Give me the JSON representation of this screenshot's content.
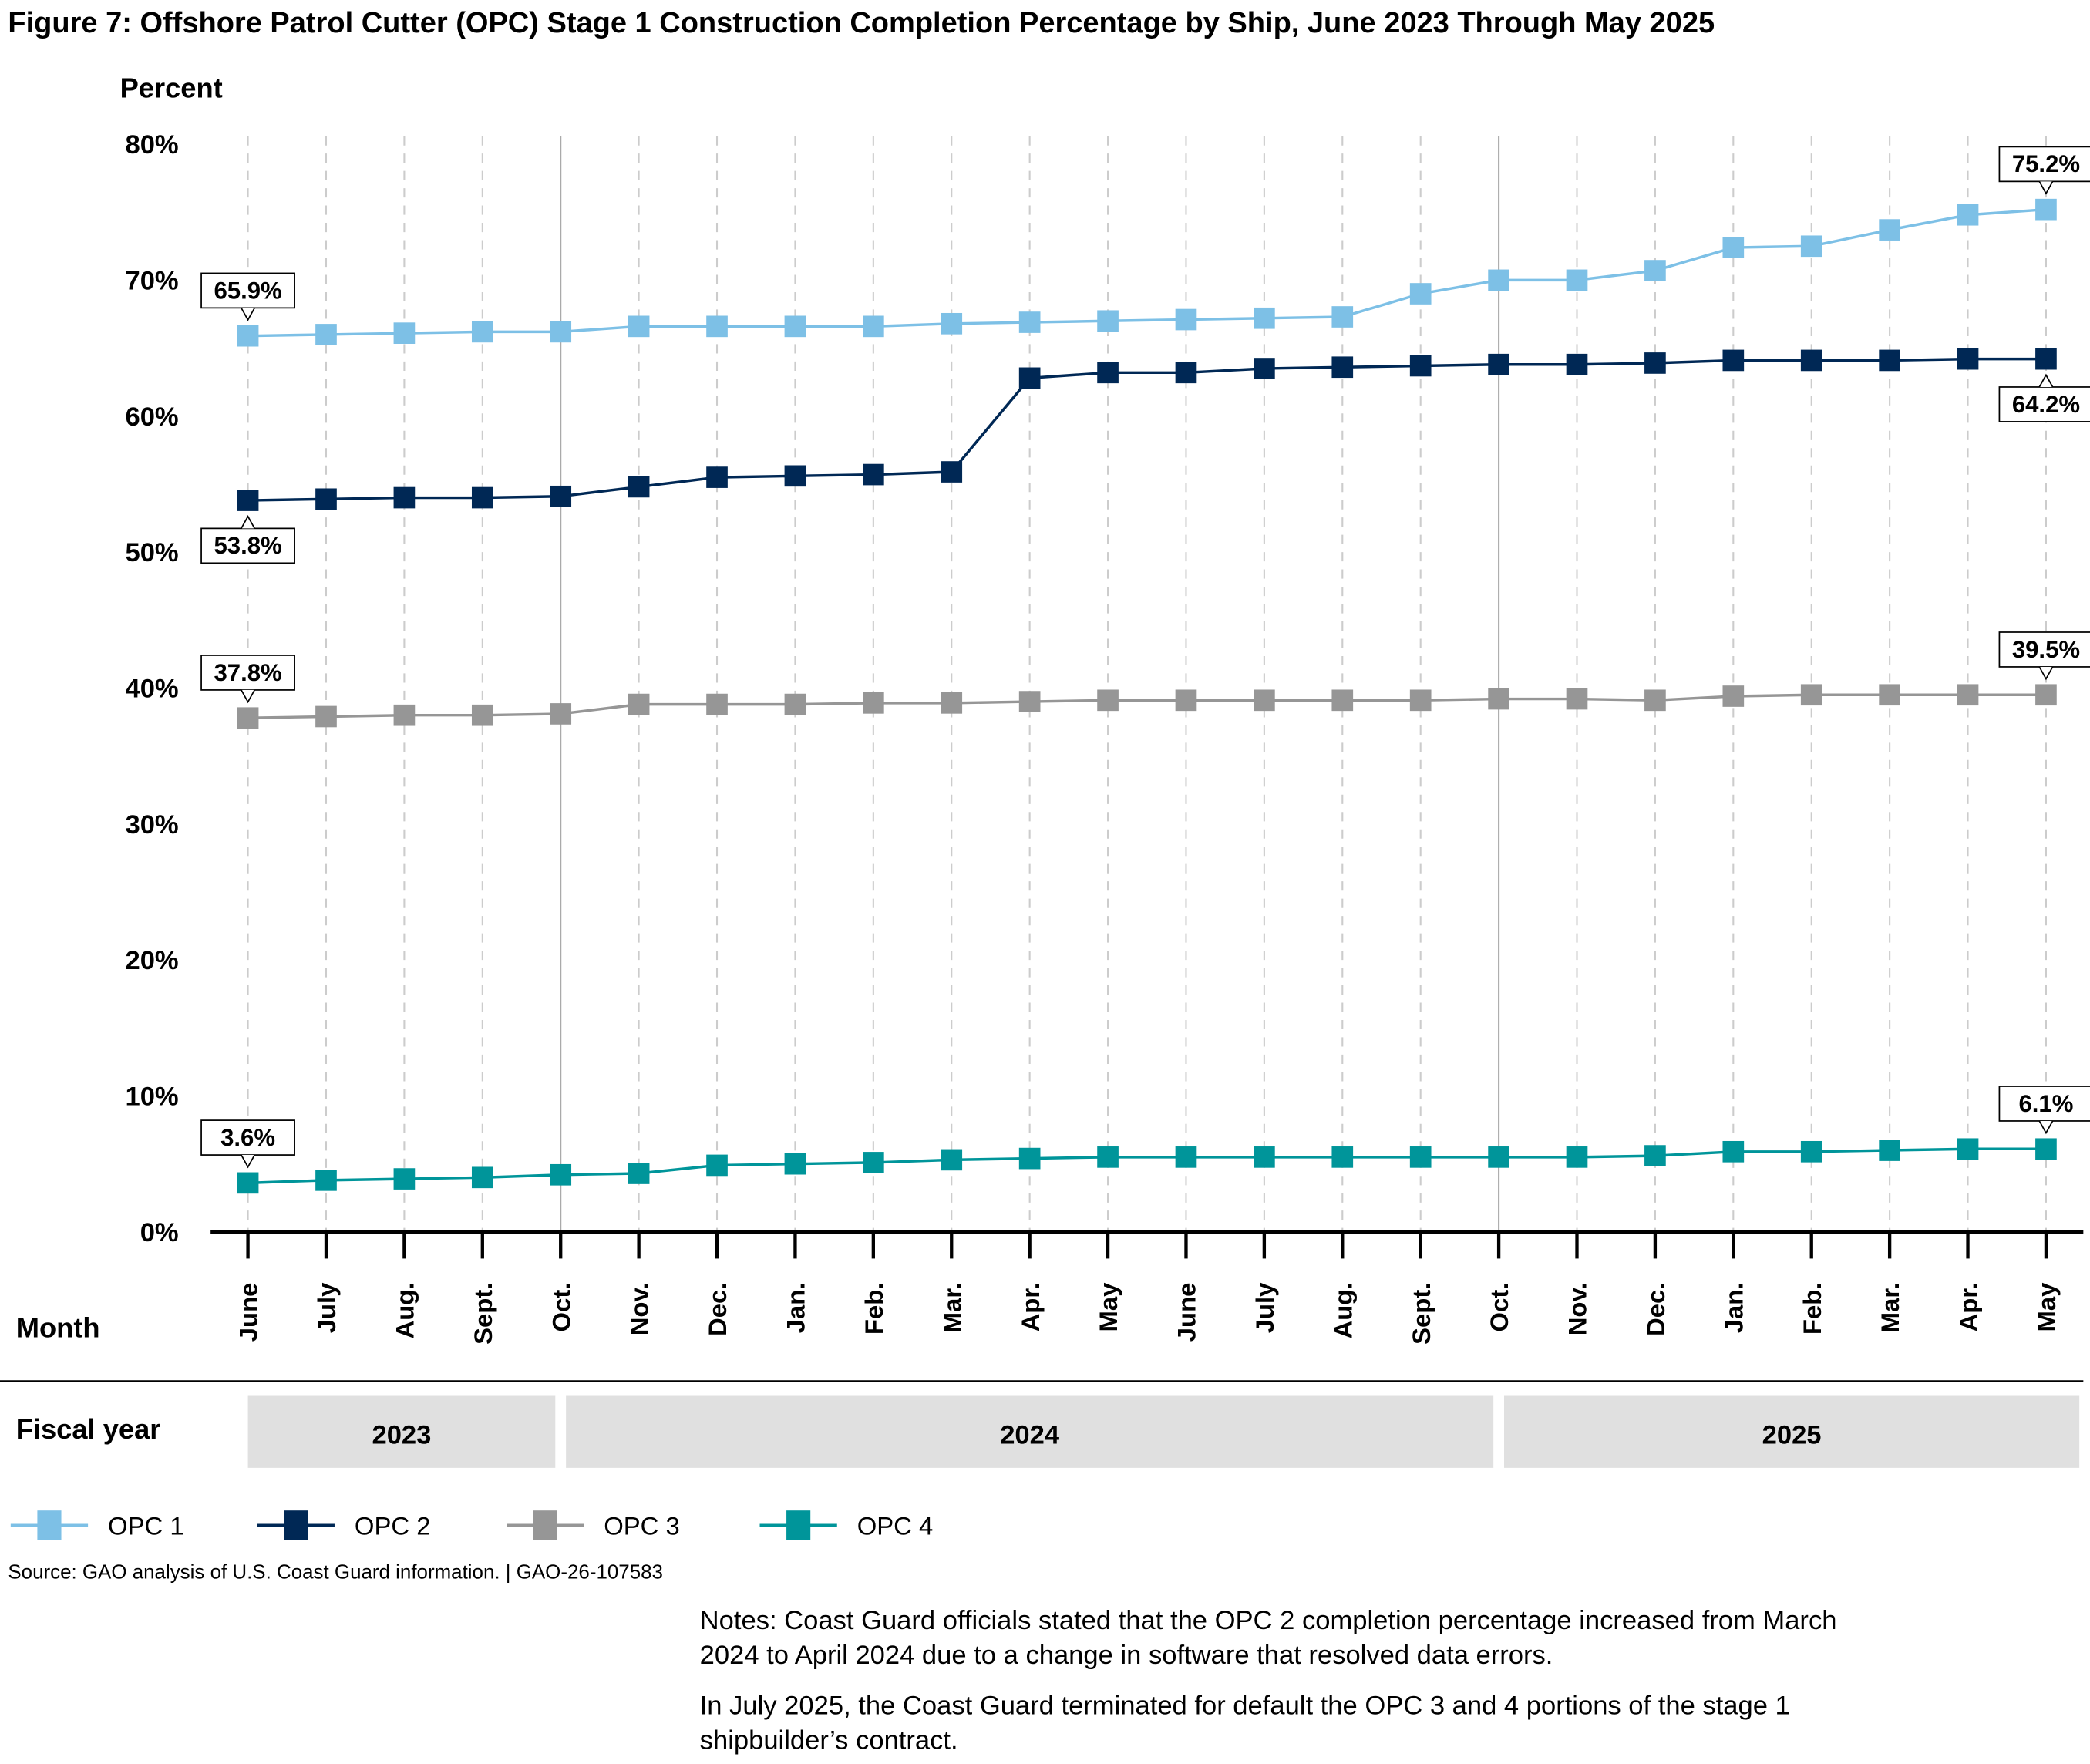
{
  "chart_data": {
    "type": "line",
    "title": "Figure 7: Offshore Patrol Cutter (OPC) Stage 1 Construction Completion Percentage by Ship, June 2023 Through May 2025",
    "ylabel": "Percent",
    "xlabel": "Month",
    "ylim": [
      0,
      80
    ],
    "yticks": [
      "0%",
      "10%",
      "20%",
      "30%",
      "40%",
      "50%",
      "60%",
      "70%",
      "80%"
    ],
    "categories": [
      "June",
      "July",
      "Aug.",
      "Sept.",
      "Oct.",
      "Nov.",
      "Dec.",
      "Jan.",
      "Feb.",
      "Mar.",
      "Apr.",
      "May",
      "June",
      "July",
      "Aug.",
      "Sept.",
      "Oct.",
      "Nov.",
      "Dec.",
      "Jan.",
      "Feb.",
      "Mar.",
      "Apr.",
      "May"
    ],
    "fiscal_year_label": "Fiscal year",
    "fiscal_years": [
      {
        "label": "2023",
        "start": 0,
        "end": 4
      },
      {
        "label": "2024",
        "start": 4,
        "end": 16
      },
      {
        "label": "2025",
        "start": 16,
        "end": 23
      }
    ],
    "fiscal_year_boundaries": [
      4,
      16
    ],
    "series": [
      {
        "name": "OPC 1",
        "color": "#7dc0e6",
        "values": [
          65.9,
          66.0,
          66.1,
          66.2,
          66.2,
          66.6,
          66.6,
          66.6,
          66.6,
          66.8,
          66.9,
          67.0,
          67.1,
          67.2,
          67.3,
          69.0,
          70.0,
          70.0,
          70.7,
          72.4,
          72.5,
          73.7,
          74.8,
          75.2
        ],
        "start_label": "65.9%",
        "start_side": "above",
        "end_label": "75.2%",
        "end_side": "above"
      },
      {
        "name": "OPC 2",
        "color": "#002855",
        "values": [
          53.8,
          53.9,
          54.0,
          54.0,
          54.1,
          54.8,
          55.5,
          55.6,
          55.7,
          55.9,
          62.8,
          63.2,
          63.2,
          63.5,
          63.6,
          63.7,
          63.8,
          63.8,
          63.9,
          64.1,
          64.1,
          64.1,
          64.2,
          64.2
        ],
        "start_label": "53.8%",
        "start_side": "below",
        "end_label": "64.2%",
        "end_side": "below"
      },
      {
        "name": "OPC 3",
        "color": "#969696",
        "values": [
          37.8,
          37.9,
          38.0,
          38.0,
          38.1,
          38.8,
          38.8,
          38.8,
          38.9,
          38.9,
          39.0,
          39.1,
          39.1,
          39.1,
          39.1,
          39.1,
          39.2,
          39.2,
          39.1,
          39.4,
          39.5,
          39.5,
          39.5,
          39.5
        ],
        "start_label": "37.8%",
        "start_side": "above",
        "end_label": "39.5%",
        "end_side": "above"
      },
      {
        "name": "OPC 4",
        "color": "#00959a",
        "values": [
          3.6,
          3.8,
          3.9,
          4.0,
          4.2,
          4.3,
          4.9,
          5.0,
          5.1,
          5.3,
          5.4,
          5.5,
          5.5,
          5.5,
          5.5,
          5.5,
          5.5,
          5.5,
          5.6,
          5.9,
          5.9,
          6.0,
          6.1,
          6.1
        ],
        "start_label": "3.6%",
        "start_side": "above",
        "end_label": "6.1%",
        "end_side": "above"
      }
    ],
    "legend_placement": "bottom-left",
    "grid": "vertical dashed"
  },
  "source": "Source: GAO analysis of U.S. Coast Guard information.  |  GAO-26-107583",
  "notes": [
    "Notes: Coast Guard officials stated that the OPC 2 completion percentage increased from March",
    "2024 to April 2024 due to a change in software that resolved data errors.",
    "In July 2025, the Coast Guard terminated for default the OPC 3 and 4 portions of the stage 1",
    "shipbuilder’s contract."
  ]
}
